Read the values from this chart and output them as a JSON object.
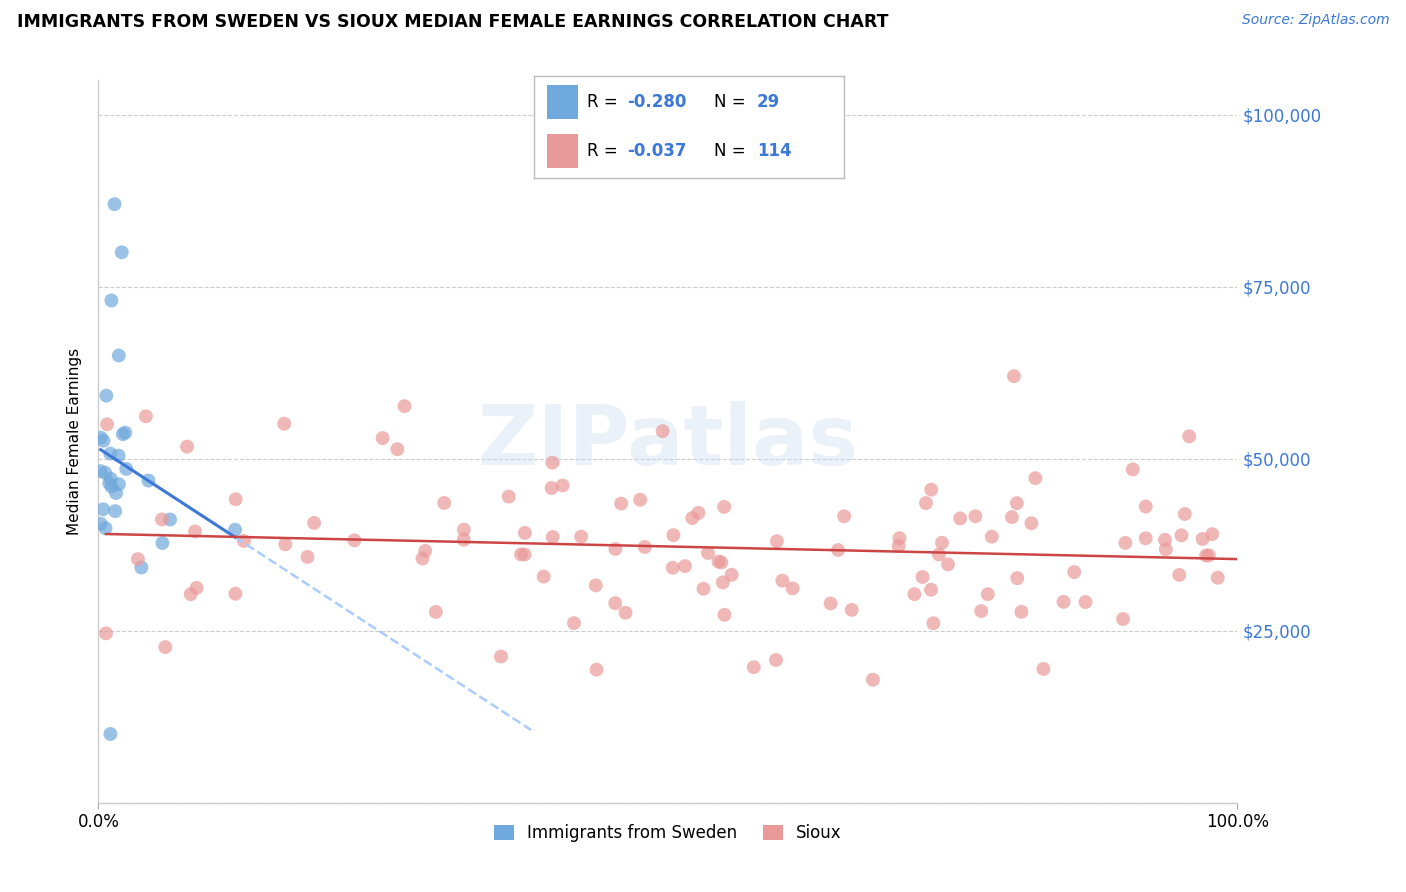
{
  "title": "IMMIGRANTS FROM SWEDEN VS SIOUX MEDIAN FEMALE EARNINGS CORRELATION CHART",
  "source": "Source: ZipAtlas.com",
  "ylabel": "Median Female Earnings",
  "xlim": [
    0,
    100
  ],
  "ylim": [
    0,
    105000
  ],
  "yticks": [
    0,
    25000,
    50000,
    75000,
    100000
  ],
  "legend_labels": [
    "Immigrants from Sweden",
    "Sioux"
  ],
  "R_sweden": -0.28,
  "N_sweden": 29,
  "R_sioux": -0.037,
  "N_sioux": 114,
  "color_sweden": "#6fa8dc",
  "color_sioux": "#ea9999",
  "color_sweden_line": "#3c78d8",
  "color_sioux_line": "#cc4444",
  "color_dashed": "#aaccff",
  "color_axis_label": "#3c78d8",
  "color_grid": "#cccccc",
  "watermark_text": "ZIPatlas",
  "sw_seed": 7,
  "si_seed": 13
}
